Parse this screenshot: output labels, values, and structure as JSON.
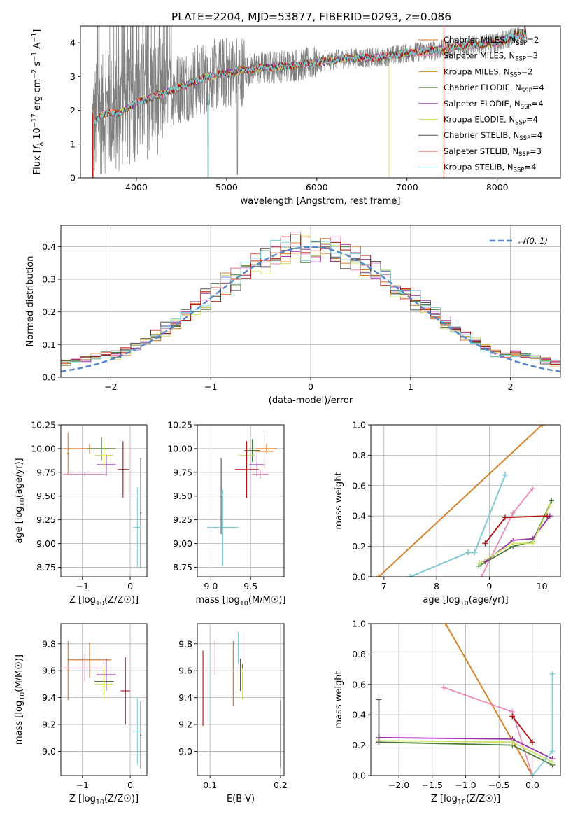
{
  "title": "PLATE=2204, MJD=53877, FIBERID=0293, z=0.086",
  "colors": {
    "Chabrier MILES": "#d9731a",
    "Salpeter MILES": "#ee88bb",
    "Kroupa MILES": "#d8822a",
    "Chabrier ELODIE": "#4a7a3a",
    "Salpeter ELODIE": "#9b30b0",
    "Kroupa ELODIE": "#cfe36a",
    "Chabrier STELIB": "#555555",
    "Salpeter STELIB": "#b01010",
    "Kroupa STELIB": "#7fd2da",
    "data_spectrum": "#808080",
    "gaussian": "#5588cc"
  },
  "chart_data": [
    {
      "type": "line",
      "id": "spectrum",
      "xlabel": "wavelength [Angstrom, rest frame]",
      "ylabel": "Flux [f_λ 10^-17 erg cm^-2 s^-1 A^-1]",
      "xlim": [
        3380,
        8700
      ],
      "ylim": [
        0,
        4.5
      ],
      "xticks": [
        4000,
        5000,
        6000,
        7000,
        8000
      ],
      "yticks": [
        0,
        1,
        2,
        3,
        4
      ],
      "grid": false,
      "legend_position": "right",
      "model_continuum": {
        "x": [
          3500,
          3600,
          3700,
          3800,
          3900,
          4000,
          4200,
          4400,
          4600,
          4800,
          5000,
          5200,
          5400,
          5600,
          5800,
          6000,
          6200,
          6400,
          6600,
          6800,
          7000,
          7200,
          7400,
          7600,
          7800,
          8000,
          8200,
          8300
        ],
        "y": [
          1.5,
          1.85,
          1.95,
          1.9,
          2.05,
          2.25,
          2.4,
          2.6,
          2.8,
          3.0,
          3.1,
          3.2,
          3.25,
          3.3,
          3.35,
          3.4,
          3.5,
          3.55,
          3.55,
          3.6,
          3.7,
          3.75,
          3.8,
          3.9,
          3.95,
          4.0,
          4.2,
          4.25
        ]
      },
      "series": [
        {
          "name": "Chabrier MILES",
          "nssp": "2"
        },
        {
          "name": "Salpeter MILES",
          "nssp": "3"
        },
        {
          "name": "Kroupa MILES",
          "nssp": "2"
        },
        {
          "name": "Chabrier ELODIE",
          "nssp": "4"
        },
        {
          "name": "Salpeter ELODIE",
          "nssp": "4"
        },
        {
          "name": "Kroupa ELODIE",
          "nssp": "4"
        },
        {
          "name": "Chabrier STELIB",
          "nssp": "4"
        },
        {
          "name": "Salpeter STELIB",
          "nssp": "3"
        },
        {
          "name": "Kroupa STELIB",
          "nssp": "4"
        }
      ]
    },
    {
      "type": "line",
      "id": "residuals",
      "xlabel": "(data-model)/error",
      "ylabel": "Normed distribution",
      "xlim": [
        -2.5,
        2.5
      ],
      "ylim": [
        0,
        0.465
      ],
      "xticks": [
        -2,
        -1,
        0,
        1,
        2
      ],
      "yticks": [
        0.0,
        0.1,
        0.2,
        0.3,
        0.4
      ],
      "grid": true,
      "legend": [
        "N(0,1)"
      ],
      "legend_position": "top-right",
      "gaussian": {
        "mean": 0,
        "sigma": 1
      }
    },
    {
      "type": "scatter",
      "id": "age_vs_Z",
      "xlabel": "Z [log10(Z/Z☉)]",
      "ylabel": "age  [log10(age/yr)]",
      "xlim": [
        -1.45,
        0.35
      ],
      "ylim": [
        8.65,
        10.25
      ],
      "xticks": [
        -1,
        0
      ],
      "yticks": [
        8.75,
        9.0,
        9.25,
        9.5,
        9.75,
        10.0,
        10.25
      ],
      "grid": true,
      "points": [
        {
          "model": "Chabrier MILES",
          "x": -0.85,
          "xerr": 0.55,
          "y": 10.0,
          "yerr": 0.05
        },
        {
          "model": "Salpeter MILES",
          "x": -0.95,
          "xerr": 0.45,
          "y": 9.73,
          "yerr": 0.02
        },
        {
          "model": "Kroupa MILES",
          "x": -1.3,
          "xerr": 0.02,
          "y": 9.95,
          "yerr": 0.22
        },
        {
          "model": "Chabrier ELODIE",
          "x": -0.6,
          "xerr": 0.3,
          "y": 10.0,
          "yerr": 0.12
        },
        {
          "model": "Salpeter ELODIE",
          "x": -0.5,
          "xerr": 0.2,
          "y": 9.83,
          "yerr": 0.12
        },
        {
          "model": "Kroupa ELODIE",
          "x": -0.55,
          "xerr": 0.2,
          "y": 9.93,
          "yerr": 0.12
        },
        {
          "model": "Chabrier STELIB",
          "x": 0.22,
          "xerr": 0.02,
          "y": 9.32,
          "yerr": 0.58
        },
        {
          "model": "Salpeter STELIB",
          "x": -0.15,
          "xerr": 0.12,
          "y": 9.78,
          "yerr": 0.3
        },
        {
          "model": "Kroupa STELIB",
          "x": 0.15,
          "xerr": 0.1,
          "y": 9.17,
          "yerr": 0.42
        }
      ]
    },
    {
      "type": "scatter",
      "id": "age_vs_mass",
      "xlabel": "mass [log10(M/M☉)]",
      "ylabel": "",
      "xlim": [
        8.83,
        9.92
      ],
      "ylim": [
        8.65,
        10.25
      ],
      "xticks": [
        9.0,
        9.5
      ],
      "yticks": [
        8.75,
        9.0,
        9.25,
        9.5,
        9.75,
        10.0,
        10.25
      ],
      "grid": true,
      "points": [
        {
          "model": "Chabrier MILES",
          "x": 9.7,
          "xerr": 0.13,
          "y": 10.0,
          "yerr": 0.05
        },
        {
          "model": "Salpeter MILES",
          "x": 9.62,
          "xerr": 0.1,
          "y": 9.73,
          "yerr": 0.05
        },
        {
          "model": "Kroupa MILES",
          "x": 9.67,
          "xerr": 0.12,
          "y": 9.97,
          "yerr": 0.18
        },
        {
          "model": "Chabrier ELODIE",
          "x": 9.52,
          "xerr": 0.1,
          "y": 9.98,
          "yerr": 0.12
        },
        {
          "model": "Salpeter ELODIE",
          "x": 9.58,
          "xerr": 0.1,
          "y": 9.83,
          "yerr": 0.12
        },
        {
          "model": "Kroupa ELODIE",
          "x": 9.45,
          "xerr": 0.1,
          "y": 9.93,
          "yerr": 0.12
        },
        {
          "model": "Chabrier STELIB",
          "x": 9.13,
          "xerr": 0.02,
          "y": 9.5,
          "yerr": 0.4
        },
        {
          "model": "Salpeter STELIB",
          "x": 9.45,
          "xerr": 0.15,
          "y": 9.78,
          "yerr": 0.3
        },
        {
          "model": "Kroupa STELIB",
          "x": 9.15,
          "xerr": 0.2,
          "y": 9.17,
          "yerr": 0.4
        }
      ]
    },
    {
      "type": "line",
      "id": "weight_vs_age",
      "xlabel": "age  [log10(age/yr)]",
      "ylabel": "mass weight",
      "xlim": [
        6.75,
        10.35
      ],
      "ylim": [
        0,
        1.0
      ],
      "xticks": [
        7,
        8,
        9,
        10
      ],
      "yticks": [
        0.0,
        0.2,
        0.4,
        0.6,
        0.8,
        1.0
      ],
      "grid": true,
      "series": [
        {
          "name": "Chabrier MILES",
          "x": [
            6.9,
            10.0
          ],
          "y": [
            0.0,
            1.0
          ]
        },
        {
          "name": "Kroupa MILES",
          "x": [
            6.9,
            10.0
          ],
          "y": [
            0.0,
            1.0
          ]
        },
        {
          "name": "Salpeter MILES",
          "x": [
            8.85,
            9.45,
            9.82
          ],
          "y": [
            0.0,
            0.42,
            0.58
          ]
        },
        {
          "name": "Chabrier ELODIE",
          "x": [
            8.8,
            9.45,
            9.82,
            10.18
          ],
          "y": [
            0.07,
            0.2,
            0.23,
            0.5
          ]
        },
        {
          "name": "Salpeter ELODIE",
          "x": [
            8.92,
            9.45,
            9.82,
            10.15
          ],
          "y": [
            0.1,
            0.24,
            0.25,
            0.4
          ]
        },
        {
          "name": "Kroupa ELODIE",
          "x": [
            8.82,
            9.45,
            9.82,
            10.15
          ],
          "y": [
            0.09,
            0.22,
            0.22,
            0.47
          ]
        },
        {
          "name": "Salpeter STELIB",
          "x": [
            8.92,
            9.3,
            10.1
          ],
          "y": [
            0.22,
            0.39,
            0.4
          ]
        },
        {
          "name": "Chabrier STELIB",
          "x": [
            7.5,
            8.6,
            8.72,
            9.3
          ],
          "y": [
            0.0,
            0.16,
            0.16,
            0.67
          ]
        },
        {
          "name": "Kroupa STELIB",
          "x": [
            7.5,
            8.6,
            8.72,
            9.3
          ],
          "y": [
            0.0,
            0.16,
            0.16,
            0.67
          ]
        }
      ]
    },
    {
      "type": "scatter",
      "id": "mass_vs_Z",
      "xlabel": "Z [log10(Z/Z☉)]",
      "ylabel": "mass [log10(M/M☉)]",
      "xlim": [
        -1.45,
        0.35
      ],
      "ylim": [
        8.82,
        9.95
      ],
      "xticks": [
        -1,
        0
      ],
      "yticks": [
        9.0,
        9.2,
        9.4,
        9.6,
        9.8
      ],
      "grid": true,
      "points": [
        {
          "model": "Chabrier MILES",
          "x": -0.85,
          "xerr": 0.45,
          "y": 9.68,
          "yerr": 0.13
        },
        {
          "model": "Salpeter MILES",
          "x": -0.95,
          "xerr": 0.45,
          "y": 9.62,
          "yerr": 0.1
        },
        {
          "model": "Kroupa MILES",
          "x": -1.3,
          "xerr": 0.02,
          "y": 9.6,
          "yerr": 0.22
        },
        {
          "model": "Chabrier ELODIE",
          "x": -0.55,
          "xerr": 0.2,
          "y": 9.52,
          "yerr": 0.12
        },
        {
          "model": "Salpeter ELODIE",
          "x": -0.5,
          "xerr": 0.2,
          "y": 9.57,
          "yerr": 0.12
        },
        {
          "model": "Kroupa ELODIE",
          "x": -0.55,
          "xerr": 0.2,
          "y": 9.5,
          "yerr": 0.12
        },
        {
          "model": "Chabrier STELIB",
          "x": 0.22,
          "xerr": 0.02,
          "y": 9.12,
          "yerr": 0.25
        },
        {
          "model": "Salpeter STELIB",
          "x": -0.1,
          "xerr": 0.1,
          "y": 9.45,
          "yerr": 0.25
        },
        {
          "model": "Kroupa STELIB",
          "x": 0.15,
          "xerr": 0.1,
          "y": 9.15,
          "yerr": 0.25
        }
      ]
    },
    {
      "type": "scatter",
      "id": "mass_vs_ebv",
      "xlabel": "E(B-V)",
      "ylabel": "",
      "xlim": [
        0.082,
        0.205
      ],
      "ylim": [
        8.82,
        9.95
      ],
      "xticks": [
        0.1,
        0.2
      ],
      "yticks": [
        9.0,
        9.2,
        9.4,
        9.6,
        9.8
      ],
      "grid": true,
      "points": [
        {
          "model": "Chabrier MILES",
          "x": 0.133,
          "xerr": 0.0,
          "y": 9.58,
          "yerr": 0.24
        },
        {
          "model": "Salpeter MILES",
          "x": 0.107,
          "xerr": 0.0,
          "y": 9.7,
          "yerr": 0.13
        },
        {
          "model": "Kroupa MILES",
          "x": 0.133,
          "xerr": 0.0,
          "y": 9.58,
          "yerr": 0.24
        },
        {
          "model": "Chabrier ELODIE",
          "x": 0.146,
          "xerr": 0.0,
          "y": 9.53,
          "yerr": 0.12
        },
        {
          "model": "Salpeter ELODIE",
          "x": 0.143,
          "xerr": 0.0,
          "y": 9.57,
          "yerr": 0.12
        },
        {
          "model": "Kroupa ELODIE",
          "x": 0.146,
          "xerr": 0.0,
          "y": 9.5,
          "yerr": 0.12
        },
        {
          "model": "Chabrier STELIB",
          "x": 0.2,
          "xerr": 0.0,
          "y": 9.13,
          "yerr": 0.25
        },
        {
          "model": "Salpeter STELIB",
          "x": 0.09,
          "xerr": 0.0,
          "y": 9.47,
          "yerr": 0.28
        },
        {
          "model": "Kroupa STELIB",
          "x": 0.14,
          "xerr": 0.0,
          "y": 9.77,
          "yerr": 0.12
        }
      ]
    },
    {
      "type": "line",
      "id": "weight_vs_Z",
      "xlabel": "Z [log10(Z/Z☉)]",
      "ylabel": "mass weight",
      "xlim": [
        -2.42,
        0.42
      ],
      "ylim": [
        0,
        1.0
      ],
      "xticks": [
        -2.0,
        -1.5,
        -1.0,
        -0.5,
        0.0
      ],
      "yticks": [
        0.0,
        0.2,
        0.4,
        0.6,
        0.8,
        1.0
      ],
      "grid": true,
      "series": [
        {
          "name": "Chabrier MILES",
          "x": [
            -1.3,
            0.0
          ],
          "y": [
            1.0,
            0.0
          ]
        },
        {
          "name": "Kroupa MILES",
          "x": [
            -1.3,
            0.0
          ],
          "y": [
            1.0,
            0.0
          ]
        },
        {
          "name": "Salpeter MILES",
          "x": [
            -1.33,
            -0.3,
            0.0
          ],
          "y": [
            0.58,
            0.42,
            0.0
          ]
        },
        {
          "name": "Chabrier ELODIE",
          "x": [
            -2.3,
            -0.3,
            0.3
          ],
          "y": [
            0.22,
            0.2,
            0.07
          ]
        },
        {
          "name": "Salpeter ELODIE",
          "x": [
            -2.3,
            -0.3,
            0.3
          ],
          "y": [
            0.25,
            0.24,
            0.11
          ]
        },
        {
          "name": "Kroupa ELODIE",
          "x": [
            -2.3,
            -0.3,
            0.3
          ],
          "y": [
            0.23,
            0.22,
            0.09
          ]
        },
        {
          "name": "Salpeter STELIB",
          "x": [
            -0.3,
            0.0
          ],
          "y": [
            0.39,
            0.22
          ]
        },
        {
          "name": "Chabrier STELIB",
          "x": [
            -2.3,
            -2.3
          ],
          "y": [
            0.5,
            0.22
          ]
        },
        {
          "name": "Kroupa STELIB",
          "x": [
            0.0,
            0.3,
            0.3
          ],
          "y": [
            0.0,
            0.16,
            0.67
          ]
        }
      ]
    }
  ]
}
